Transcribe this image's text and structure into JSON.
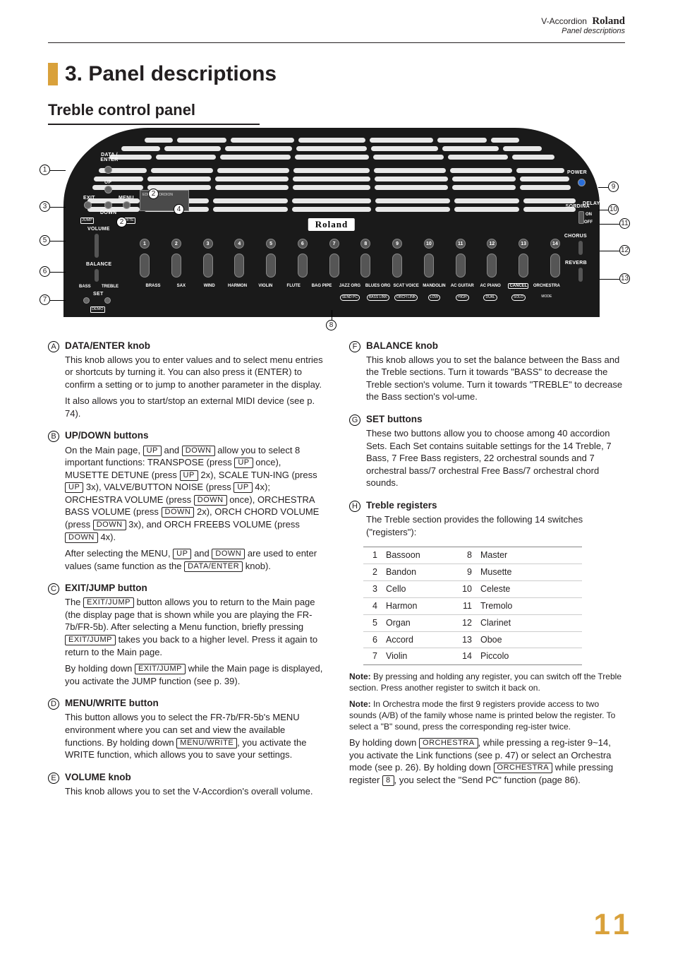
{
  "header": {
    "product": "V-Accordion",
    "brand": "Roland",
    "subtitle": "Panel descriptions"
  },
  "title": "3. Panel descriptions",
  "subtitle": "Treble control panel",
  "panel": {
    "logo": "Roland",
    "labels": {
      "data_enter": "DATA /\nENTER",
      "up": "UP",
      "down": "DOWN",
      "exit": "EXIT",
      "menu": "MENU",
      "jump": "JUMP",
      "write": "WRITE",
      "volume": "VOLUME",
      "balance": "BALANCE",
      "bass": "BASS",
      "treble": "TREBLE",
      "set": "SET",
      "demo": "DEMO",
      "lcd": "EDIT ACCORDION",
      "power": "POWER",
      "sordina": "SORDINA",
      "on": "ON",
      "off": "OFF",
      "delay": "DELAY",
      "chorus": "CHORUS",
      "reverb": "REVERB"
    },
    "reg_numbers": [
      "1",
      "2",
      "3",
      "4",
      "5",
      "6",
      "7",
      "8",
      "9",
      "10",
      "11",
      "12",
      "13",
      "14"
    ],
    "reg_names": [
      "BRASS",
      "SAX",
      "WIND",
      "HARMON",
      "VIOLIN",
      "FLUTE",
      "BAG PIPE",
      "JAZZ ORG",
      "BLUES ORG",
      "SCAT VOICE",
      "MANDOLIN",
      "AC GUITAR",
      "AC PIANO",
      "CANCEL",
      "ORCHESTRA"
    ],
    "reg_subs": [
      "",
      "",
      "",
      "",
      "",
      "",
      "",
      "SEND PC",
      "BASS LINK",
      "ORCH LINK",
      "LOW",
      "HIGH",
      "DUAL",
      "SOLO",
      "MODE"
    ]
  },
  "callouts": {
    "c1": "1",
    "c2": "2",
    "c3": "3",
    "c4": "4",
    "c5": "5",
    "c6": "6",
    "c7": "7",
    "c8": "8",
    "c9": "9",
    "c10": "10",
    "c11": "11",
    "c12": "12",
    "c13": "13"
  },
  "items": [
    {
      "n": "A",
      "title": "DATA/ENTER knob",
      "paras": [
        "This knob allows you to enter values and to select menu entries or shortcuts by turning it. You can also press it (ENTER) to confirm a setting or to jump to another parameter in the display.",
        "It also allows you to start/stop an external MIDI device (see p. 74)."
      ]
    },
    {
      "n": "B",
      "title": "UP/DOWN buttons",
      "paras": [
        "On the Main page, [UP] and [DOWN] allow you to select 8 important functions: TRANSPOSE (press [UP] once), MUSETTE DETUNE (press [UP] 2x), SCALE TUN-ING (press [UP] 3x), VALVE/BUTTON NOISE (press [UP] 4x); ORCHESTRA VOLUME (press [DOWN] once), ORCHESTRA BASS VOLUME (press [DOWN] 2x), ORCH CHORD VOLUME (press [DOWN] 3x), and ORCH FREEBS VOLUME (press [DOWN] 4x).",
        "After selecting the MENU, [UP] and [DOWN] are used to enter values (same function as the [DATA÷ENTER] knob)."
      ]
    },
    {
      "n": "C",
      "title": "EXIT/JUMP button",
      "paras": [
        "The [EXIT÷JUMP] button allows you to return to the Main page (the display page that is shown while you are playing the FR-7b/FR-5b). After selecting a Menu function, briefly pressing [EXIT÷JUMP] takes you back to a higher level. Press it again to return to the Main page.",
        "By holding down [EXIT÷JUMP] while the Main page is displayed, you activate the JUMP function (see p. 39)."
      ]
    },
    {
      "n": "D",
      "title": "MENU/WRITE button",
      "paras": [
        "This button allows you to select the FR-7b/FR-5b's MENU environment where you can set and view the available functions. By holding down [MENU÷WRITE], you activate the WRITE function, which allows you to save your settings."
      ]
    },
    {
      "n": "E",
      "title": "VOLUME knob",
      "paras": [
        "This knob allows you to set the V-Accordion's overall volume."
      ]
    },
    {
      "n": "F",
      "title": "BALANCE knob",
      "paras": [
        "This knob allows you to set the balance between the Bass and the Treble sections. Turn it towards \"BASS\" to decrease the Treble section's volume. Turn it towards \"TREBLE\" to decrease the Bass section's vol-ume."
      ]
    },
    {
      "n": "G",
      "title": "SET buttons",
      "paras": [
        "These two buttons allow you to choose among 40 accordion Sets. Each Set contains suitable settings for the 14 Treble, 7 Bass, 7 Free Bass registers, 22 orchestral sounds and 7 orchestral bass/7 orchestral Free Bass/7 orchestral chord sounds."
      ]
    },
    {
      "n": "H",
      "title": "Treble registers",
      "paras": [
        "The Treble section provides the following 14 switches (\"registers\"):"
      ]
    }
  ],
  "reg_table": {
    "left": [
      {
        "n": "1",
        "t": "Bassoon"
      },
      {
        "n": "2",
        "t": "Bandon"
      },
      {
        "n": "3",
        "t": "Cello"
      },
      {
        "n": "4",
        "t": "Harmon"
      },
      {
        "n": "5",
        "t": "Organ"
      },
      {
        "n": "6",
        "t": "Accord"
      },
      {
        "n": "7",
        "t": "Violin"
      }
    ],
    "right": [
      {
        "n": "8",
        "t": "Master"
      },
      {
        "n": "9",
        "t": "Musette"
      },
      {
        "n": "10",
        "t": "Celeste"
      },
      {
        "n": "11",
        "t": "Tremolo"
      },
      {
        "n": "12",
        "t": "Clarinet"
      },
      {
        "n": "13",
        "t": "Oboe"
      },
      {
        "n": "14",
        "t": "Piccolo"
      }
    ]
  },
  "notes": [
    "By pressing and holding any register, you can switch off the Treble section. Press another register to switch it back on.",
    "In Orchestra mode the first 9 registers provide access to two sounds (A/B) of the family whose name is printed below the register. To select a \"B\" sound, press the corresponding reg-ister twice."
  ],
  "tail": "By holding down [ORCHESTRA], while pressing a reg-ister 9~14, you activate the Link functions (see p. 47) or select an Orchestra mode (see p. 26). By holding down [ORCHESTRA] while pressing register [8], you select the \"Send PC\" function (page 86).",
  "pagenum": "11",
  "colors": {
    "accent": "#d9a13b",
    "panel": "#1a1a1a"
  }
}
